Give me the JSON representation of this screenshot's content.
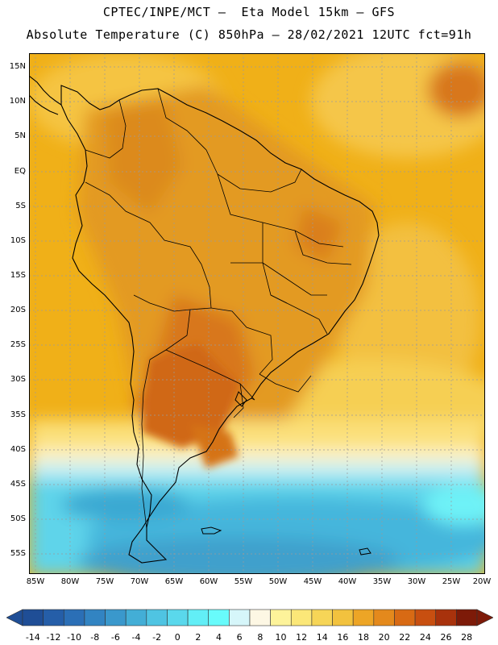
{
  "header": {
    "line1": "CPTEC/INPE/MCT —  Eta Model 15km — GFS",
    "line2": "Absolute Temperature (C) 850hPa — 28/02/2021 12UTC fct=91h"
  },
  "map": {
    "lat_labels": [
      "15N",
      "10N",
      "5N",
      "EQ",
      "5S",
      "10S",
      "15S",
      "20S",
      "25S",
      "30S",
      "35S",
      "40S",
      "45S",
      "50S",
      "55S"
    ],
    "lon_labels": [
      "85W",
      "80W",
      "75W",
      "70W",
      "65W",
      "60W",
      "55W",
      "50W",
      "45W",
      "40W",
      "35W",
      "30W",
      "25W",
      "20W"
    ],
    "colors": {
      "ocean_tropical": "#f0b018",
      "land_warm": "#e9a520",
      "hot": "#d8771c",
      "cold": "#2fa9d6",
      "coast": "#000000",
      "grid": "#9a9a9a"
    }
  },
  "colorbar": {
    "labels": [
      "-14",
      "-12",
      "-10",
      "-8",
      "-6",
      "-4",
      "-2",
      "0",
      "2",
      "4",
      "6",
      "8",
      "10",
      "12",
      "14",
      "16",
      "18",
      "20",
      "22",
      "24",
      "26",
      "28"
    ],
    "colors": [
      "#1f4e96",
      "#255ea8",
      "#2b6fb6",
      "#3284c2",
      "#3a98cc",
      "#43aed6",
      "#4fc4e2",
      "#5ad8ec",
      "#62eef6",
      "#68fbfb",
      "#d6f6fa",
      "#fdf7e4",
      "#fdf39a",
      "#fbe778",
      "#f6d557",
      "#f2c23e",
      "#eda526",
      "#e4891c",
      "#d86a14",
      "#c84f10",
      "#a8320c",
      "#7d1a08"
    ]
  }
}
